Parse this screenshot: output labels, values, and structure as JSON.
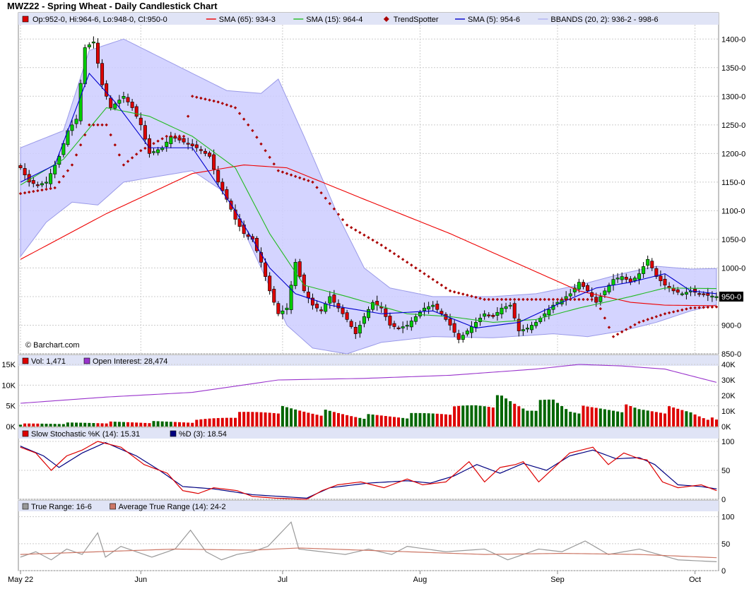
{
  "title": "MWZ22 - Spring Wheat - Daily Candlestick Chart",
  "watermark": "© Barchart.com",
  "price_panel": {
    "legend": [
      {
        "name": "Op:952-0, Hi:964-6, Lo:948-0, Cl:950-0",
        "color": "#dd0000",
        "symbol": "box"
      },
      {
        "name": "SMA (65): 934-3",
        "color": "#ee0000",
        "symbol": "line"
      },
      {
        "name": "SMA (15): 964-4",
        "color": "#22bb22",
        "symbol": "line"
      },
      {
        "name": "TrendSpotter",
        "color": "#aa0000",
        "symbol": "diamond"
      },
      {
        "name": "SMA (5): 954-6",
        "color": "#0000cc",
        "symbol": "line"
      },
      {
        "name": "BBANDS (20, 2): 936-2 - 998-6",
        "color": "#b0b0f0",
        "symbol": "line"
      }
    ],
    "y_ticks": [
      "850-0",
      "900-0",
      "950-0",
      "1000-0",
      "1050-0",
      "1100-0",
      "1150-0",
      "1200-0",
      "1250-0",
      "1300-0",
      "1350-0",
      "1400-0"
    ],
    "last_price_label": "950-0"
  },
  "volume_panel": {
    "legend": [
      {
        "name": "Vol: 1,471",
        "color": "#dd0000"
      },
      {
        "name": "Open Interest: 28,474",
        "color": "#9933cc"
      }
    ],
    "left_ticks": [
      "0K",
      "5K",
      "10K",
      "15K"
    ],
    "right_ticks": [
      "0K",
      "10K",
      "20K",
      "30K",
      "40K"
    ]
  },
  "stoch_panel": {
    "legend": [
      {
        "name": "Slow Stochastic %K (14): 15.31",
        "color": "#dd0000"
      },
      {
        "name": "%D (3): 18.54",
        "color": "#000080"
      }
    ],
    "ticks": [
      "0",
      "50",
      "100"
    ]
  },
  "tr_panel": {
    "legend": [
      {
        "name": "True Range: 16-6",
        "color": "#999999"
      },
      {
        "name": "Average True Range (14): 24-2",
        "color": "#cc7766"
      }
    ],
    "ticks": [
      "0",
      "50",
      "100"
    ]
  },
  "x_labels": [
    "May 22",
    "Jun",
    "Jul",
    "Aug",
    "Sep",
    "Oct"
  ],
  "colors": {
    "up": "#00cc00",
    "down": "#dd0000",
    "band": "#ccccff",
    "panel_header": "#e0e4f6"
  },
  "chart_data": {
    "type": "candlestick",
    "x_range": [
      "2022-05-20",
      "2022-10-26"
    ],
    "ylim": [
      850,
      1425
    ],
    "close_keypoints": [
      [
        0,
        1175
      ],
      [
        2,
        1150
      ],
      [
        4,
        1145
      ],
      [
        6,
        1150
      ],
      [
        9,
        1195
      ],
      [
        11,
        1240
      ],
      [
        13,
        1260
      ],
      [
        15,
        1385
      ],
      [
        17,
        1395
      ],
      [
        19,
        1320
      ],
      [
        21,
        1280
      ],
      [
        24,
        1300
      ],
      [
        26,
        1280
      ],
      [
        28,
        1250
      ],
      [
        30,
        1200
      ],
      [
        33,
        1210
      ],
      [
        35,
        1230
      ],
      [
        38,
        1220
      ],
      [
        41,
        1210
      ],
      [
        44,
        1195
      ],
      [
        46,
        1150
      ],
      [
        48,
        1120
      ],
      [
        50,
        1085
      ],
      [
        52,
        1060
      ],
      [
        54,
        1050
      ],
      [
        56,
        1010
      ],
      [
        58,
        960
      ],
      [
        60,
        920
      ],
      [
        62,
        930
      ],
      [
        64,
        1010
      ],
      [
        66,
        960
      ],
      [
        68,
        935
      ],
      [
        70,
        925
      ],
      [
        72,
        950
      ],
      [
        74,
        930
      ],
      [
        76,
        910
      ],
      [
        78,
        885
      ],
      [
        80,
        915
      ],
      [
        82,
        940
      ],
      [
        84,
        930
      ],
      [
        86,
        900
      ],
      [
        88,
        895
      ],
      [
        90,
        900
      ],
      [
        92,
        915
      ],
      [
        94,
        930
      ],
      [
        96,
        935
      ],
      [
        98,
        920
      ],
      [
        100,
        900
      ],
      [
        102,
        875
      ],
      [
        104,
        890
      ],
      [
        106,
        905
      ],
      [
        108,
        920
      ],
      [
        110,
        915
      ],
      [
        112,
        930
      ],
      [
        114,
        935
      ],
      [
        116,
        890
      ],
      [
        118,
        895
      ],
      [
        120,
        905
      ],
      [
        122,
        920
      ],
      [
        124,
        935
      ],
      [
        126,
        945
      ],
      [
        128,
        955
      ],
      [
        130,
        975
      ],
      [
        132,
        960
      ],
      [
        134,
        940
      ],
      [
        136,
        960
      ],
      [
        138,
        980
      ],
      [
        140,
        985
      ],
      [
        142,
        975
      ],
      [
        144,
        990
      ],
      [
        146,
        1015
      ],
      [
        148,
        985
      ],
      [
        150,
        970
      ],
      [
        152,
        960
      ],
      [
        154,
        955
      ],
      [
        156,
        960
      ],
      [
        158,
        955
      ],
      [
        160,
        952
      ],
      [
        162,
        950
      ]
    ],
    "sma65_keypoints": [
      [
        0,
        1015
      ],
      [
        20,
        1095
      ],
      [
        40,
        1165
      ],
      [
        52,
        1180
      ],
      [
        62,
        1175
      ],
      [
        80,
        1120
      ],
      [
        100,
        1060
      ],
      [
        115,
        1010
      ],
      [
        130,
        960
      ],
      [
        142,
        940
      ],
      [
        150,
        935
      ],
      [
        162,
        934
      ]
    ],
    "sma15_keypoints": [
      [
        0,
        1145
      ],
      [
        10,
        1190
      ],
      [
        20,
        1280
      ],
      [
        30,
        1265
      ],
      [
        40,
        1230
      ],
      [
        50,
        1175
      ],
      [
        58,
        1060
      ],
      [
        66,
        970
      ],
      [
        76,
        950
      ],
      [
        90,
        920
      ],
      [
        100,
        915
      ],
      [
        110,
        905
      ],
      [
        120,
        910
      ],
      [
        130,
        930
      ],
      [
        142,
        950
      ],
      [
        150,
        965
      ],
      [
        162,
        964
      ]
    ],
    "sma5_keypoints": [
      [
        0,
        1150
      ],
      [
        8,
        1180
      ],
      [
        16,
        1340
      ],
      [
        22,
        1290
      ],
      [
        30,
        1210
      ],
      [
        40,
        1210
      ],
      [
        50,
        1100
      ],
      [
        58,
        1000
      ],
      [
        64,
        955
      ],
      [
        72,
        935
      ],
      [
        84,
        920
      ],
      [
        96,
        925
      ],
      [
        106,
        895
      ],
      [
        116,
        905
      ],
      [
        126,
        940
      ],
      [
        134,
        965
      ],
      [
        142,
        975
      ],
      [
        150,
        990
      ],
      [
        156,
        960
      ],
      [
        162,
        955
      ]
    ],
    "bb_upper_keypoints": [
      [
        0,
        1210
      ],
      [
        10,
        1240
      ],
      [
        16,
        1380
      ],
      [
        24,
        1400
      ],
      [
        32,
        1370
      ],
      [
        40,
        1340
      ],
      [
        48,
        1310
      ],
      [
        56,
        1305
      ],
      [
        60,
        1330
      ],
      [
        66,
        1230
      ],
      [
        74,
        1090
      ],
      [
        80,
        1000
      ],
      [
        86,
        965
      ],
      [
        96,
        950
      ],
      [
        110,
        950
      ],
      [
        120,
        955
      ],
      [
        130,
        970
      ],
      [
        140,
        990
      ],
      [
        148,
        1003
      ],
      [
        156,
        998
      ],
      [
        162,
        999
      ]
    ],
    "bb_lower_keypoints": [
      [
        0,
        1020
      ],
      [
        6,
        1080
      ],
      [
        12,
        1115
      ],
      [
        18,
        1110
      ],
      [
        24,
        1150
      ],
      [
        32,
        1160
      ],
      [
        40,
        1170
      ],
      [
        48,
        1130
      ],
      [
        56,
        1000
      ],
      [
        62,
        900
      ],
      [
        68,
        860
      ],
      [
        76,
        850
      ],
      [
        84,
        870
      ],
      [
        96,
        880
      ],
      [
        110,
        878
      ],
      [
        124,
        885
      ],
      [
        132,
        880
      ],
      [
        140,
        890
      ],
      [
        148,
        905
      ],
      [
        156,
        925
      ],
      [
        162,
        936
      ]
    ],
    "trendspotter_keypoints": [
      [
        0,
        1130
      ],
      [
        8,
        1140
      ],
      [
        12,
        1180
      ],
      [
        16,
        1250
      ],
      [
        20,
        1250
      ],
      [
        24,
        1180
      ],
      [
        28,
        1205
      ],
      [
        34,
        1230
      ],
      [
        38,
        1230
      ],
      [
        40,
        1300
      ],
      [
        46,
        1290
      ],
      [
        50,
        1280
      ],
      [
        54,
        1240
      ],
      [
        60,
        1170
      ],
      [
        68,
        1150
      ],
      [
        76,
        1075
      ],
      [
        84,
        1040
      ],
      [
        92,
        1000
      ],
      [
        100,
        960
      ],
      [
        108,
        945
      ],
      [
        120,
        945
      ],
      [
        134,
        945
      ],
      [
        138,
        880
      ],
      [
        144,
        905
      ],
      [
        150,
        920
      ],
      [
        156,
        930
      ],
      [
        162,
        932
      ]
    ],
    "volume_keypoints": [
      [
        0,
        600
      ],
      [
        20,
        1000
      ],
      [
        40,
        1200
      ],
      [
        50,
        2800
      ],
      [
        60,
        4200
      ],
      [
        70,
        3500
      ],
      [
        80,
        2500
      ],
      [
        90,
        2600
      ],
      [
        100,
        3800
      ],
      [
        106,
        5400
      ],
      [
        112,
        6500
      ],
      [
        118,
        4500
      ],
      [
        124,
        6200
      ],
      [
        128,
        4200
      ],
      [
        132,
        4200
      ],
      [
        140,
        4600
      ],
      [
        144,
        4000
      ],
      [
        150,
        4200
      ],
      [
        156,
        3600
      ],
      [
        162,
        1471
      ]
    ],
    "open_interest_keypoints": [
      [
        0,
        15000
      ],
      [
        20,
        19000
      ],
      [
        40,
        22000
      ],
      [
        60,
        30000
      ],
      [
        80,
        31000
      ],
      [
        100,
        33000
      ],
      [
        120,
        37000
      ],
      [
        130,
        40000
      ],
      [
        140,
        39000
      ],
      [
        150,
        37000
      ],
      [
        162,
        28474
      ]
    ],
    "stoch_k_keypoints": [
      [
        0,
        90
      ],
      [
        4,
        80
      ],
      [
        8,
        50
      ],
      [
        12,
        75
      ],
      [
        16,
        85
      ],
      [
        20,
        100
      ],
      [
        26,
        90
      ],
      [
        32,
        60
      ],
      [
        38,
        45
      ],
      [
        42,
        15
      ],
      [
        46,
        10
      ],
      [
        50,
        20
      ],
      [
        56,
        15
      ],
      [
        60,
        5
      ],
      [
        66,
        2
      ],
      [
        74,
        0
      ],
      [
        78,
        15
      ],
      [
        82,
        25
      ],
      [
        88,
        30
      ],
      [
        94,
        20
      ],
      [
        100,
        35
      ],
      [
        104,
        25
      ],
      [
        110,
        30
      ],
      [
        116,
        65
      ],
      [
        120,
        30
      ],
      [
        124,
        55
      ],
      [
        128,
        60
      ],
      [
        130,
        65
      ],
      [
        134,
        30
      ],
      [
        138,
        55
      ],
      [
        142,
        80
      ],
      [
        148,
        90
      ],
      [
        152,
        60
      ],
      [
        156,
        80
      ],
      [
        160,
        70
      ],
      [
        162,
        68
      ],
      [
        166,
        30
      ],
      [
        170,
        20
      ],
      [
        176,
        25
      ],
      [
        180,
        15
      ]
    ],
    "stoch_d_keypoints": [
      [
        0,
        92
      ],
      [
        6,
        75
      ],
      [
        10,
        55
      ],
      [
        16,
        80
      ],
      [
        22,
        98
      ],
      [
        30,
        75
      ],
      [
        36,
        50
      ],
      [
        42,
        22
      ],
      [
        50,
        18
      ],
      [
        60,
        8
      ],
      [
        74,
        2
      ],
      [
        80,
        20
      ],
      [
        90,
        28
      ],
      [
        100,
        32
      ],
      [
        106,
        28
      ],
      [
        112,
        40
      ],
      [
        118,
        60
      ],
      [
        124,
        45
      ],
      [
        130,
        62
      ],
      [
        136,
        50
      ],
      [
        142,
        75
      ],
      [
        148,
        85
      ],
      [
        154,
        70
      ],
      [
        160,
        72
      ],
      [
        164,
        60
      ],
      [
        170,
        25
      ],
      [
        176,
        22
      ],
      [
        180,
        18
      ]
    ],
    "true_range_keypoints": [
      [
        0,
        25
      ],
      [
        4,
        35
      ],
      [
        8,
        20
      ],
      [
        12,
        40
      ],
      [
        16,
        30
      ],
      [
        20,
        70
      ],
      [
        22,
        25
      ],
      [
        26,
        45
      ],
      [
        30,
        35
      ],
      [
        34,
        25
      ],
      [
        40,
        40
      ],
      [
        44,
        75
      ],
      [
        48,
        35
      ],
      [
        52,
        20
      ],
      [
        56,
        30
      ],
      [
        60,
        35
      ],
      [
        64,
        45
      ],
      [
        70,
        90
      ],
      [
        72,
        40
      ],
      [
        78,
        35
      ],
      [
        84,
        30
      ],
      [
        90,
        40
      ],
      [
        96,
        30
      ],
      [
        100,
        45
      ],
      [
        110,
        35
      ],
      [
        120,
        40
      ],
      [
        126,
        20
      ],
      [
        134,
        40
      ],
      [
        140,
        35
      ],
      [
        146,
        55
      ],
      [
        152,
        30
      ],
      [
        160,
        40
      ],
      [
        170,
        20
      ],
      [
        180,
        16.5
      ]
    ],
    "atr_keypoints": [
      [
        0,
        30
      ],
      [
        20,
        35
      ],
      [
        40,
        40
      ],
      [
        60,
        38
      ],
      [
        72,
        42
      ],
      [
        80,
        40
      ],
      [
        100,
        35
      ],
      [
        120,
        30
      ],
      [
        140,
        32
      ],
      [
        160,
        30
      ],
      [
        180,
        24
      ]
    ]
  }
}
